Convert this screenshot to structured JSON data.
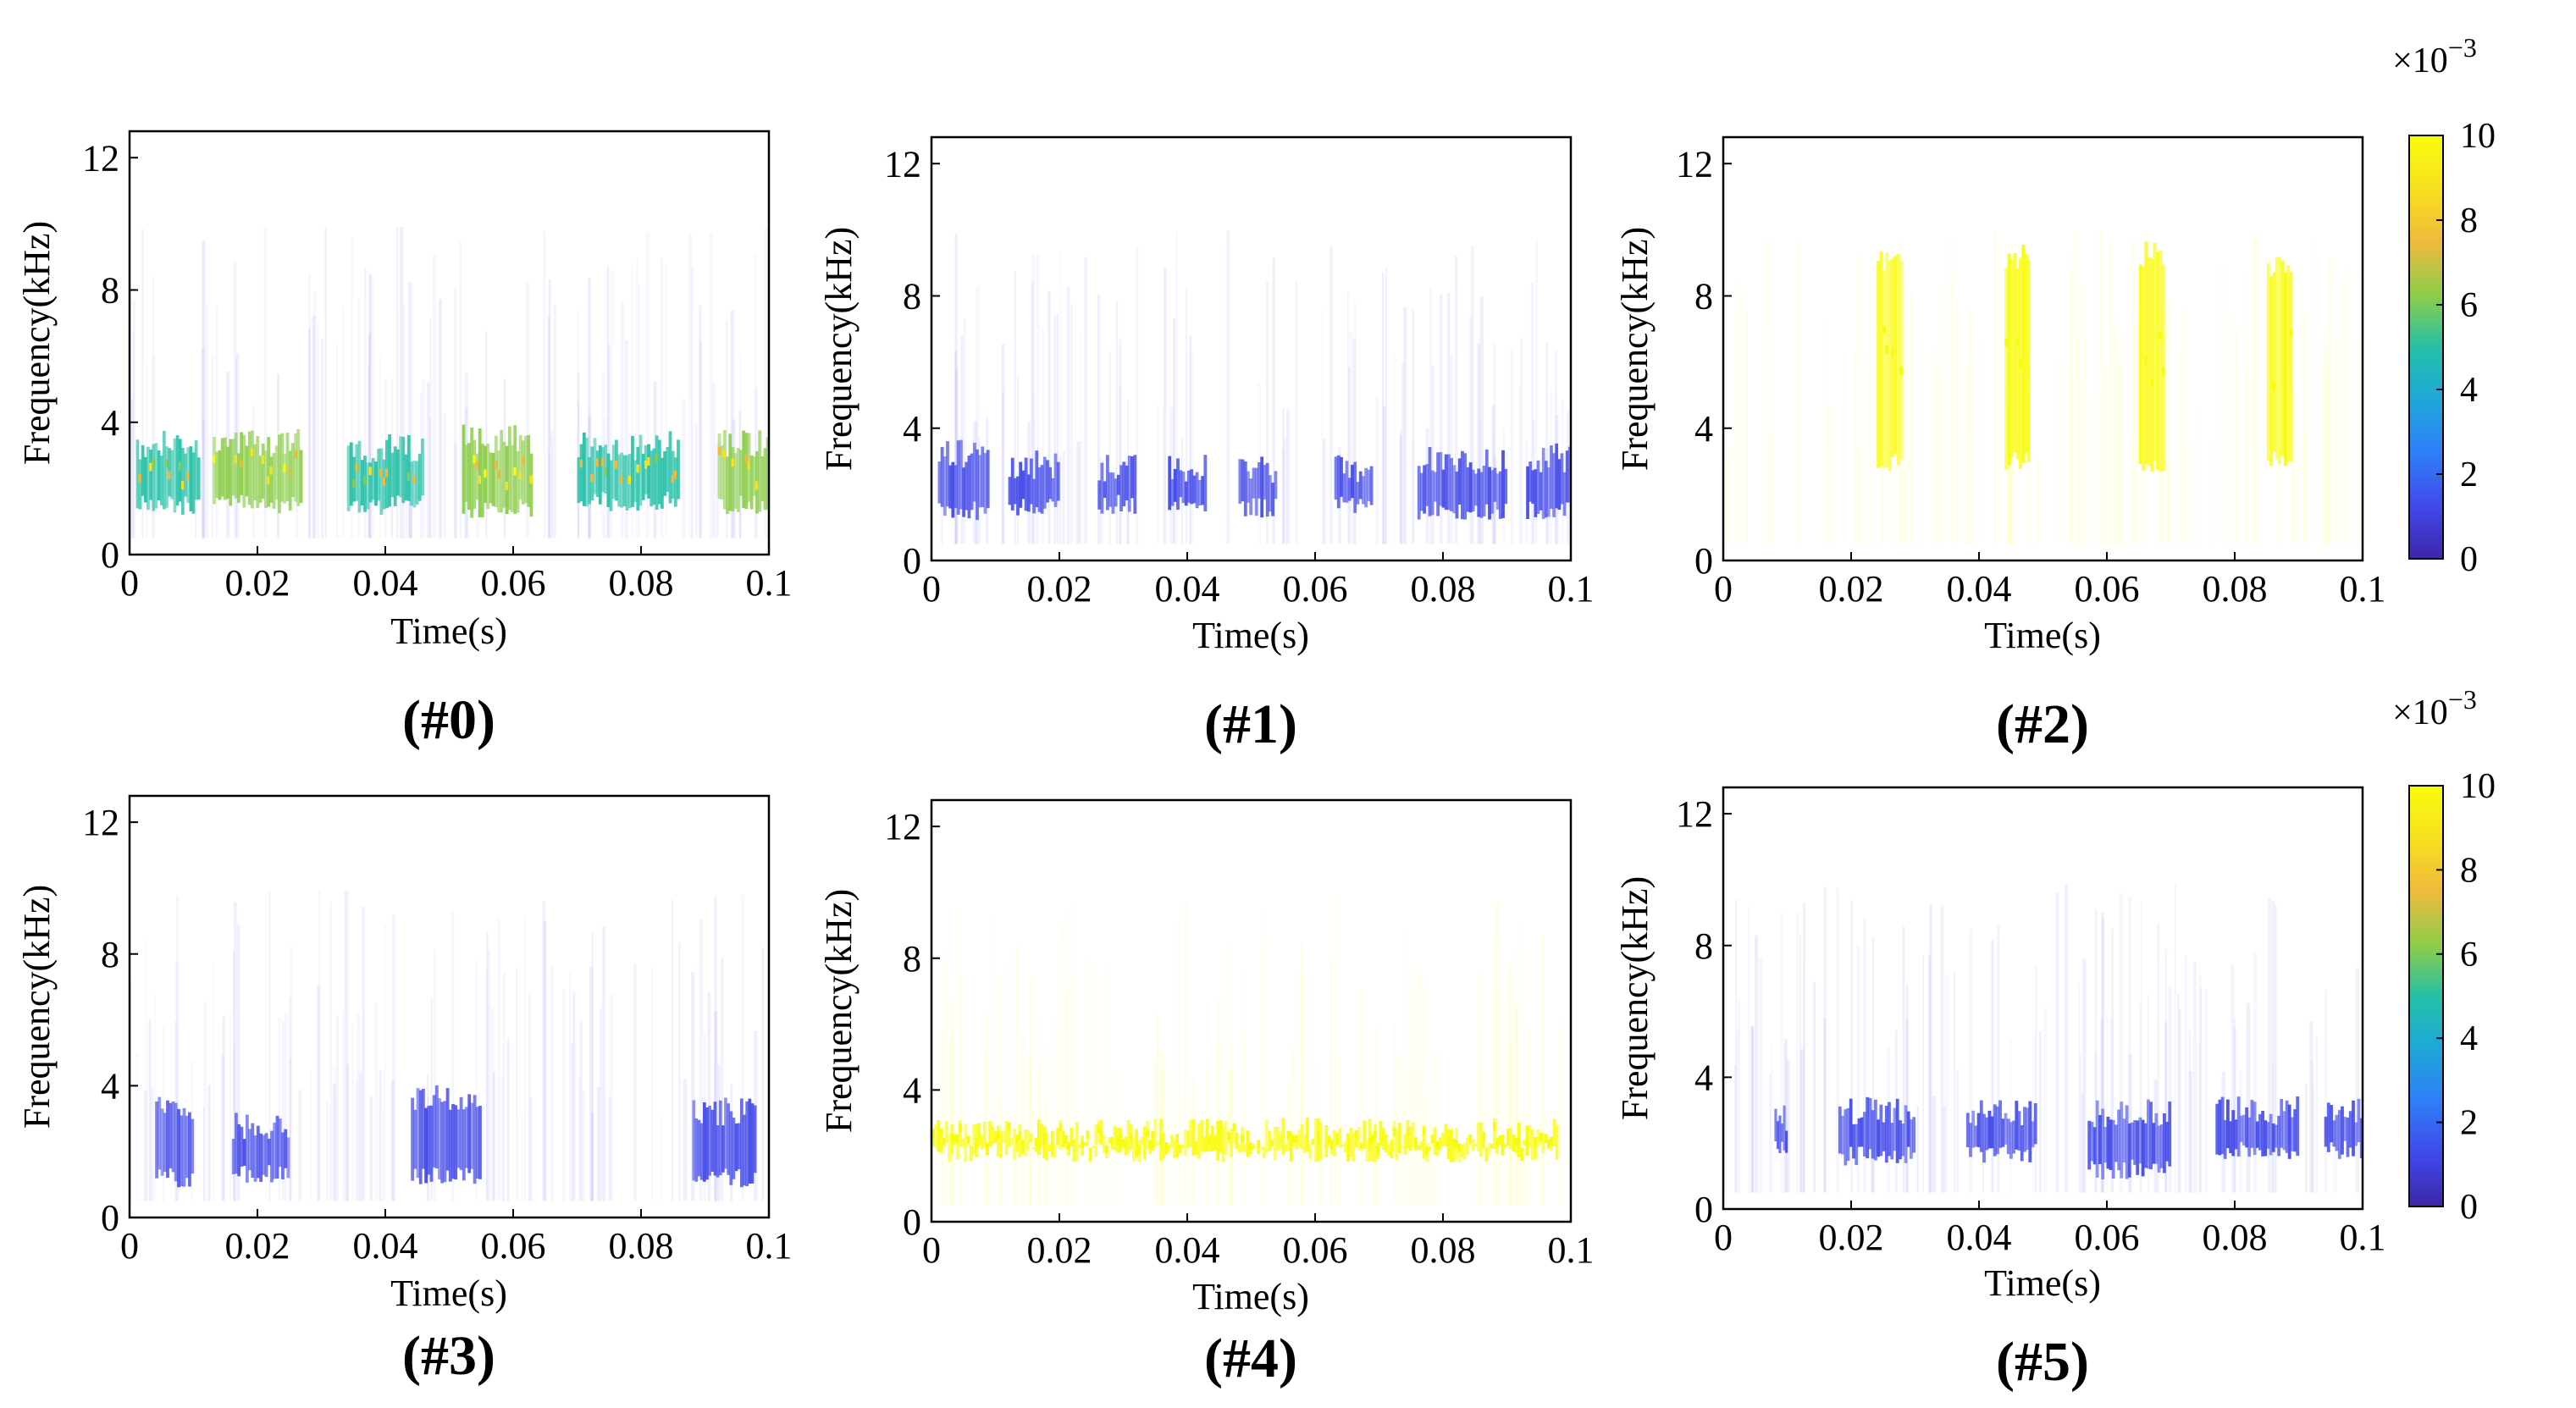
{
  "figure": {
    "colormap": [
      "#3e26a8",
      "#4148e8",
      "#2e7ef7",
      "#1ea9d8",
      "#25c0a6",
      "#8bcd4a",
      "#f0ba3c",
      "#f9e11e",
      "#f9fb0e"
    ]
  },
  "chart_data": [
    {
      "type": "heatmap",
      "panel_id": "p0",
      "caption": "(#0)",
      "xlabel": "Time(s)",
      "ylabel": "Frequency(kHz)",
      "xlim": [
        0,
        0.1
      ],
      "ylim": [
        0,
        12.8
      ],
      "xticks": [
        0,
        0.02,
        0.04,
        0.06,
        0.08,
        0.1
      ],
      "xticklabels": [
        "0",
        "0.02",
        "0.04",
        "0.06",
        "0.08",
        "0.1"
      ],
      "yticks": [
        0,
        4,
        8,
        12
      ],
      "yticklabels": [
        "0",
        "4",
        "8",
        "12"
      ],
      "bursts": [
        {
          "t_start": 0.001,
          "t_end": 0.011,
          "f_low": 1.5,
          "f_high": 3.3,
          "level": 4
        },
        {
          "t_start": 0.013,
          "t_end": 0.027,
          "f_low": 1.5,
          "f_high": 3.4,
          "level": 5
        },
        {
          "t_start": 0.034,
          "t_end": 0.046,
          "f_low": 1.5,
          "f_high": 3.2,
          "level": 4
        },
        {
          "t_start": 0.052,
          "t_end": 0.063,
          "f_low": 1.4,
          "f_high": 3.5,
          "level": 5
        },
        {
          "t_start": 0.07,
          "t_end": 0.086,
          "f_low": 1.6,
          "f_high": 3.3,
          "level": 4
        },
        {
          "t_start": 0.092,
          "t_end": 0.1,
          "f_low": 1.5,
          "f_high": 3.4,
          "level": 5
        }
      ]
    },
    {
      "type": "heatmap",
      "panel_id": "p1",
      "caption": "(#1)",
      "xlabel": "Time(s)",
      "ylabel": "Frequency(kHz)",
      "xlim": [
        0,
        0.1
      ],
      "ylim": [
        0,
        12.8
      ],
      "xticks": [
        0,
        0.02,
        0.04,
        0.06,
        0.08,
        0.1
      ],
      "xticklabels": [
        "0",
        "0.02",
        "0.04",
        "0.06",
        "0.08",
        "0.1"
      ],
      "yticks": [
        0,
        4,
        8,
        12
      ],
      "yticklabels": [
        "0",
        "4",
        "8",
        "12"
      ],
      "bursts": [
        {
          "t_start": 0.001,
          "t_end": 0.009,
          "f_low": 1.5,
          "f_high": 3.2,
          "level": 1
        },
        {
          "t_start": 0.012,
          "t_end": 0.02,
          "f_low": 1.6,
          "f_high": 2.9,
          "level": 1
        },
        {
          "t_start": 0.026,
          "t_end": 0.032,
          "f_low": 1.7,
          "f_high": 2.8,
          "level": 1
        },
        {
          "t_start": 0.037,
          "t_end": 0.043,
          "f_low": 1.7,
          "f_high": 2.8,
          "level": 1
        },
        {
          "t_start": 0.048,
          "t_end": 0.054,
          "f_low": 1.6,
          "f_high": 2.7,
          "level": 1
        },
        {
          "t_start": 0.063,
          "t_end": 0.069,
          "f_low": 1.7,
          "f_high": 2.8,
          "level": 1
        },
        {
          "t_start": 0.076,
          "t_end": 0.09,
          "f_low": 1.5,
          "f_high": 3.0,
          "level": 1
        },
        {
          "t_start": 0.093,
          "t_end": 0.1,
          "f_low": 1.5,
          "f_high": 3.1,
          "level": 1
        }
      ]
    },
    {
      "type": "heatmap",
      "panel_id": "p2",
      "caption": "(#2)",
      "xlabel": "Time(s)",
      "ylabel": "Frequency(kHz)",
      "xlim": [
        0,
        0.1
      ],
      "ylim": [
        0,
        12.8
      ],
      "xticks": [
        0,
        0.02,
        0.04,
        0.06,
        0.08,
        0.1
      ],
      "xticklabels": [
        "0",
        "0.02",
        "0.04",
        "0.06",
        "0.08",
        "0.1"
      ],
      "yticks": [
        0,
        4,
        8,
        12
      ],
      "yticklabels": [
        "0",
        "4",
        "8",
        "12"
      ],
      "bursts": [
        {
          "t_start": 0.024,
          "t_end": 0.028,
          "f_low": 3.0,
          "f_high": 9.2,
          "level": 8
        },
        {
          "t_start": 0.044,
          "t_end": 0.048,
          "f_low": 3.0,
          "f_high": 9.2,
          "level": 8
        },
        {
          "t_start": 0.065,
          "t_end": 0.069,
          "f_low": 2.8,
          "f_high": 9.2,
          "level": 8
        },
        {
          "t_start": 0.085,
          "t_end": 0.089,
          "f_low": 3.0,
          "f_high": 9.0,
          "level": 8
        }
      ],
      "colorbar": {
        "ticks": [
          0,
          2,
          4,
          6,
          8,
          10
        ],
        "ticklabels": [
          "0",
          "2",
          "4",
          "6",
          "8",
          "10"
        ],
        "exponent_label": "×10",
        "exponent": "−3"
      }
    },
    {
      "type": "heatmap",
      "panel_id": "p3",
      "caption": "(#3)",
      "xlabel": "Time(s)",
      "ylabel": "Frequency(kHz)",
      "xlim": [
        0,
        0.1
      ],
      "ylim": [
        0,
        12.8
      ],
      "xticks": [
        0,
        0.02,
        0.04,
        0.06,
        0.08,
        0.1
      ],
      "xticklabels": [
        "0",
        "0.02",
        "0.04",
        "0.06",
        "0.08",
        "0.1"
      ],
      "yticks": [
        0,
        4,
        8,
        12
      ],
      "yticklabels": [
        "0",
        "4",
        "8",
        "12"
      ],
      "bursts": [
        {
          "t_start": 0.004,
          "t_end": 0.01,
          "f_low": 1.2,
          "f_high": 3.3,
          "level": 1
        },
        {
          "t_start": 0.016,
          "t_end": 0.025,
          "f_low": 1.3,
          "f_high": 2.8,
          "level": 1
        },
        {
          "t_start": 0.044,
          "t_end": 0.055,
          "f_low": 1.3,
          "f_high": 3.6,
          "level": 1
        },
        {
          "t_start": 0.088,
          "t_end": 0.098,
          "f_low": 1.2,
          "f_high": 3.2,
          "level": 1
        }
      ]
    },
    {
      "type": "heatmap",
      "panel_id": "p4",
      "caption": "(#4)",
      "xlabel": "Time(s)",
      "ylabel": "Frequency(kHz)",
      "xlim": [
        0,
        0.1
      ],
      "ylim": [
        0,
        12.8
      ],
      "xticks": [
        0,
        0.02,
        0.04,
        0.06,
        0.08,
        0.1
      ],
      "xticklabels": [
        "0",
        "0.02",
        "0.04",
        "0.06",
        "0.08",
        "0.1"
      ],
      "yticks": [
        0,
        4,
        8,
        12
      ],
      "yticklabels": [
        "0",
        "4",
        "8",
        "12"
      ],
      "bursts": [
        {
          "t_start": 0.0,
          "t_end": 0.098,
          "f_low": 2.1,
          "f_high": 2.7,
          "level": 8
        }
      ]
    },
    {
      "type": "heatmap",
      "panel_id": "p5",
      "caption": "(#5)",
      "xlabel": "Time(s)",
      "ylabel": "Frequency(kHz)",
      "xlim": [
        0,
        0.1
      ],
      "ylim": [
        0,
        12.8
      ],
      "xticks": [
        0,
        0.02,
        0.04,
        0.06,
        0.08,
        0.1
      ],
      "xticklabels": [
        "0",
        "0.02",
        "0.04",
        "0.06",
        "0.08",
        "0.1"
      ],
      "yticks": [
        0,
        4,
        8,
        12
      ],
      "yticklabels": [
        "0",
        "4",
        "8",
        "12"
      ],
      "bursts": [
        {
          "t_start": 0.008,
          "t_end": 0.01,
          "f_low": 1.8,
          "f_high": 2.7,
          "level": 1
        },
        {
          "t_start": 0.018,
          "t_end": 0.03,
          "f_low": 1.6,
          "f_high": 3.0,
          "level": 1
        },
        {
          "t_start": 0.038,
          "t_end": 0.049,
          "f_low": 1.7,
          "f_high": 2.9,
          "level": 1
        },
        {
          "t_start": 0.057,
          "t_end": 0.07,
          "f_low": 1.2,
          "f_high": 2.9,
          "level": 1
        },
        {
          "t_start": 0.077,
          "t_end": 0.09,
          "f_low": 1.8,
          "f_high": 3.0,
          "level": 1
        },
        {
          "t_start": 0.094,
          "t_end": 0.1,
          "f_low": 1.8,
          "f_high": 2.9,
          "level": 1
        }
      ],
      "colorbar": {
        "ticks": [
          0,
          2,
          4,
          6,
          8,
          10
        ],
        "ticklabels": [
          "0",
          "2",
          "4",
          "6",
          "8",
          "10"
        ],
        "exponent_label": "×10",
        "exponent": "−3"
      }
    }
  ]
}
